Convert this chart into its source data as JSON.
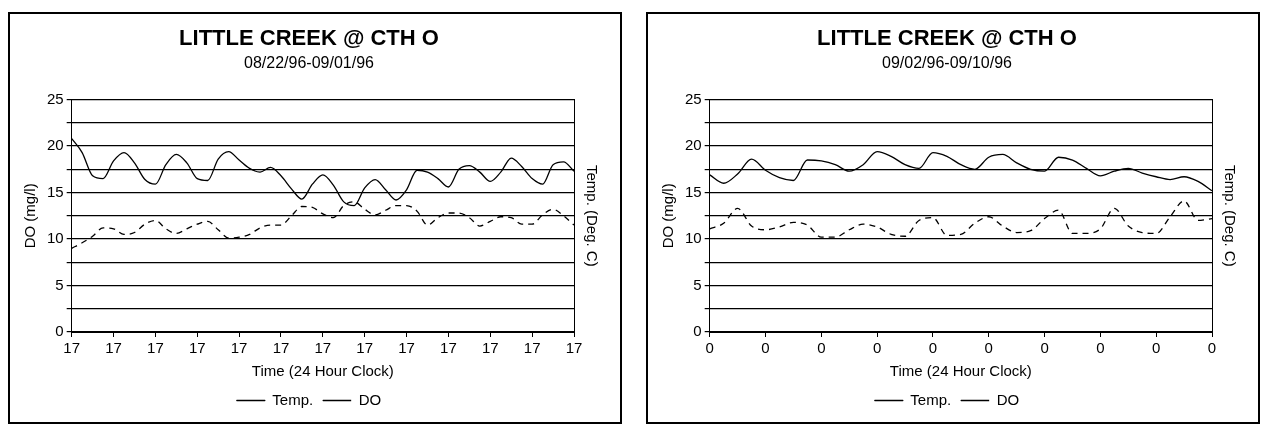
{
  "chart_data": [
    {
      "type": "line",
      "title": "LITTLE CREEK @ CTH O",
      "subtitle": "08/22/96-09/01/96",
      "xlabel": "Time (24 Hour Clock)",
      "ylabel": "DO (mg/l)",
      "y2label": "Temp. (Deg. C)",
      "categories": [
        "17",
        null,
        null,
        null,
        "17",
        null,
        null,
        null,
        "17",
        null,
        null,
        null,
        "17",
        null,
        null,
        null,
        "17",
        null,
        null,
        null,
        "17",
        null,
        null,
        null,
        "17",
        null,
        null,
        null,
        "17",
        null,
        null,
        null,
        "17",
        null,
        null,
        null,
        "17",
        null,
        null,
        null,
        "17",
        null,
        null,
        null,
        "17",
        null,
        null,
        null,
        "17"
      ],
      "ylim": [
        0,
        25
      ],
      "yticks": [
        0,
        {
          "value": 2.5,
          "label": null
        },
        5,
        {
          "value": 7.5,
          "label": null
        },
        10,
        {
          "value": 12.5,
          "label": null
        },
        15,
        {
          "value": 17.5,
          "label": null
        },
        20,
        {
          "value": 22.5,
          "label": null
        },
        25
      ],
      "grid": "y",
      "legend": "bottom",
      "marker": "none",
      "series": [
        {
          "name": "Temp.",
          "color": "#000000",
          "line_style": "solid",
          "values": [
            20.8,
            19.3,
            16.8,
            16.5,
            18.4,
            19.3,
            18.2,
            16.4,
            15.9,
            18.0,
            19.1,
            18.2,
            16.5,
            16.3,
            18.6,
            19.4,
            18.5,
            17.6,
            17.2,
            17.7,
            16.8,
            15.4,
            14.3,
            15.9,
            16.9,
            15.8,
            14.0,
            13.6,
            15.5,
            16.4,
            15.3,
            14.2,
            15.3,
            17.4,
            17.2,
            16.5,
            15.6,
            17.5,
            17.9,
            17.2,
            16.2,
            17.2,
            18.7,
            17.8,
            16.5,
            15.9,
            18.0,
            18.3,
            17.3
          ]
        },
        {
          "name": "DO",
          "color": "#000000",
          "line_style": "dashed",
          "values": [
            9.0,
            9.6,
            10.3,
            11.2,
            11.1,
            10.5,
            10.7,
            11.6,
            12.0,
            11.1,
            10.6,
            11.1,
            11.6,
            11.9,
            11.0,
            10.1,
            10.2,
            10.5,
            11.2,
            11.5,
            11.5,
            12.5,
            13.5,
            13.4,
            12.7,
            12.3,
            13.6,
            14.0,
            13.2,
            12.6,
            13.1,
            13.6,
            13.6,
            13.0,
            11.5,
            12.3,
            12.8,
            12.8,
            12.3,
            11.4,
            11.9,
            12.4,
            12.3,
            11.6,
            11.6,
            12.6,
            13.2,
            12.5,
            11.5
          ]
        }
      ]
    },
    {
      "type": "line",
      "title": "LITTLE CREEK @ CTH O",
      "subtitle": "09/02/96-09/10/96",
      "xlabel": "Time (24 Hour Clock)",
      "ylabel": "DO (mg/l)",
      "y2label": "Temp. (Deg. C)",
      "categories": [
        "0",
        null,
        null,
        null,
        "0",
        null,
        null,
        null,
        "0",
        null,
        null,
        null,
        "0",
        null,
        null,
        null,
        "0",
        null,
        null,
        null,
        "0",
        null,
        null,
        null,
        "0",
        null,
        null,
        null,
        "0",
        null,
        null,
        null,
        "0",
        null,
        null,
        null,
        "0"
      ],
      "ylim": [
        0,
        25
      ],
      "yticks": [
        0,
        {
          "value": 2.5,
          "label": null
        },
        5,
        {
          "value": 7.5,
          "label": null
        },
        10,
        {
          "value": 12.5,
          "label": null
        },
        15,
        {
          "value": 17.5,
          "label": null
        },
        20,
        {
          "value": 22.5,
          "label": null
        },
        25
      ],
      "grid": "y",
      "legend": "bottom",
      "marker": "none",
      "series": [
        {
          "name": "Temp.",
          "color": "#000000",
          "line_style": "solid",
          "values": [
            16.9,
            16.0,
            17.0,
            18.6,
            17.4,
            16.6,
            16.3,
            18.5,
            18.4,
            18.0,
            17.3,
            18.0,
            19.4,
            18.9,
            18.0,
            17.6,
            19.3,
            18.9,
            18.0,
            17.5,
            18.8,
            19.1,
            18.2,
            17.5,
            17.3,
            18.8,
            18.5,
            17.6,
            16.8,
            17.3,
            17.6,
            17.1,
            16.7,
            16.4,
            16.7,
            16.2,
            15.2
          ]
        },
        {
          "name": "DO",
          "color": "#000000",
          "line_style": "dashed",
          "values": [
            11.1,
            11.7,
            13.3,
            11.4,
            11.0,
            11.3,
            11.8,
            11.5,
            10.2,
            10.2,
            11.0,
            11.6,
            11.3,
            10.5,
            10.3,
            12.0,
            12.3,
            10.4,
            10.5,
            11.7,
            12.4,
            11.4,
            10.7,
            10.9,
            12.2,
            13.1,
            10.6,
            10.6,
            11.1,
            13.3,
            11.4,
            10.7,
            10.6,
            12.4,
            14.1,
            12.0,
            12.2
          ]
        }
      ]
    }
  ]
}
